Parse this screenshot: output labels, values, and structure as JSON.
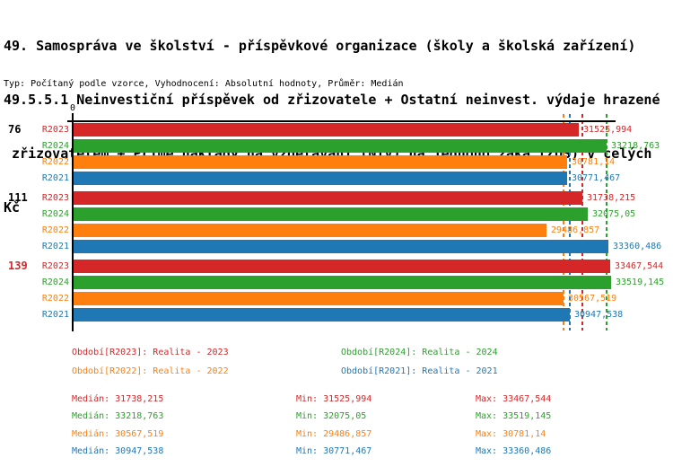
{
  "title": {
    "line1": "49. Samospráva ve školství - příspěvkové organizace (školy a školská zařízení)",
    "line2": "49.5.5.1 Neinvestiční příspěvek od zřizovatele + Ostatní neinvest. výdaje hrazené",
    "line3": " zřizovatelem + Přímé náklady na vzdělávání (NIV) na jednoho žáka (ZUŠ) v celých",
    "line4": "Kč",
    "subtitle": "Typ: Počítaný podle vzorce, Vyhodnocení: Absolutní hodnoty, Průměr: Medián"
  },
  "chart_data": {
    "type": "bar",
    "orientation": "horizontal",
    "unit": "Kč",
    "x_tick_label": "0",
    "xlim": [
      0,
      33800
    ],
    "grid": false,
    "axis_color": "#000000",
    "categories": [
      "76",
      "111",
      "139"
    ],
    "category_label_colors": [
      "#000000",
      "#000000",
      "#d62728"
    ],
    "decimal_separator": ",",
    "series": [
      {
        "name": "R2023",
        "legend_label": "Období[R2023]: Realita - 2023",
        "color": "#d62728",
        "values": [
          31525.994,
          31738.215,
          33467.544
        ],
        "median": 31738.215,
        "min": 31525.994,
        "max": 33467.544
      },
      {
        "name": "R2024",
        "legend_label": "Období[R2024]: Realita - 2024",
        "color": "#2ca02c",
        "values": [
          33218.763,
          32075.05,
          33519.145
        ],
        "median": 33218.763,
        "min": 32075.05,
        "max": 33519.145
      },
      {
        "name": "R2022",
        "legend_label": "Období[R2022]: Realita - 2022",
        "color": "#ff7f0e",
        "values": [
          30781.14,
          29486.857,
          30567.519
        ],
        "median": 30567.519,
        "min": 29486.857,
        "max": 30781.14
      },
      {
        "name": "R2021",
        "legend_label": "Období[R2021]: Realita - 2021",
        "color": "#1f77b4",
        "values": [
          30771.467,
          33360.486,
          30947.538
        ],
        "median": 30947.538,
        "min": 30771.467,
        "max": 33360.486
      }
    ]
  },
  "stats_labels": {
    "median": "Medián",
    "min": "Min",
    "max": "Max"
  }
}
